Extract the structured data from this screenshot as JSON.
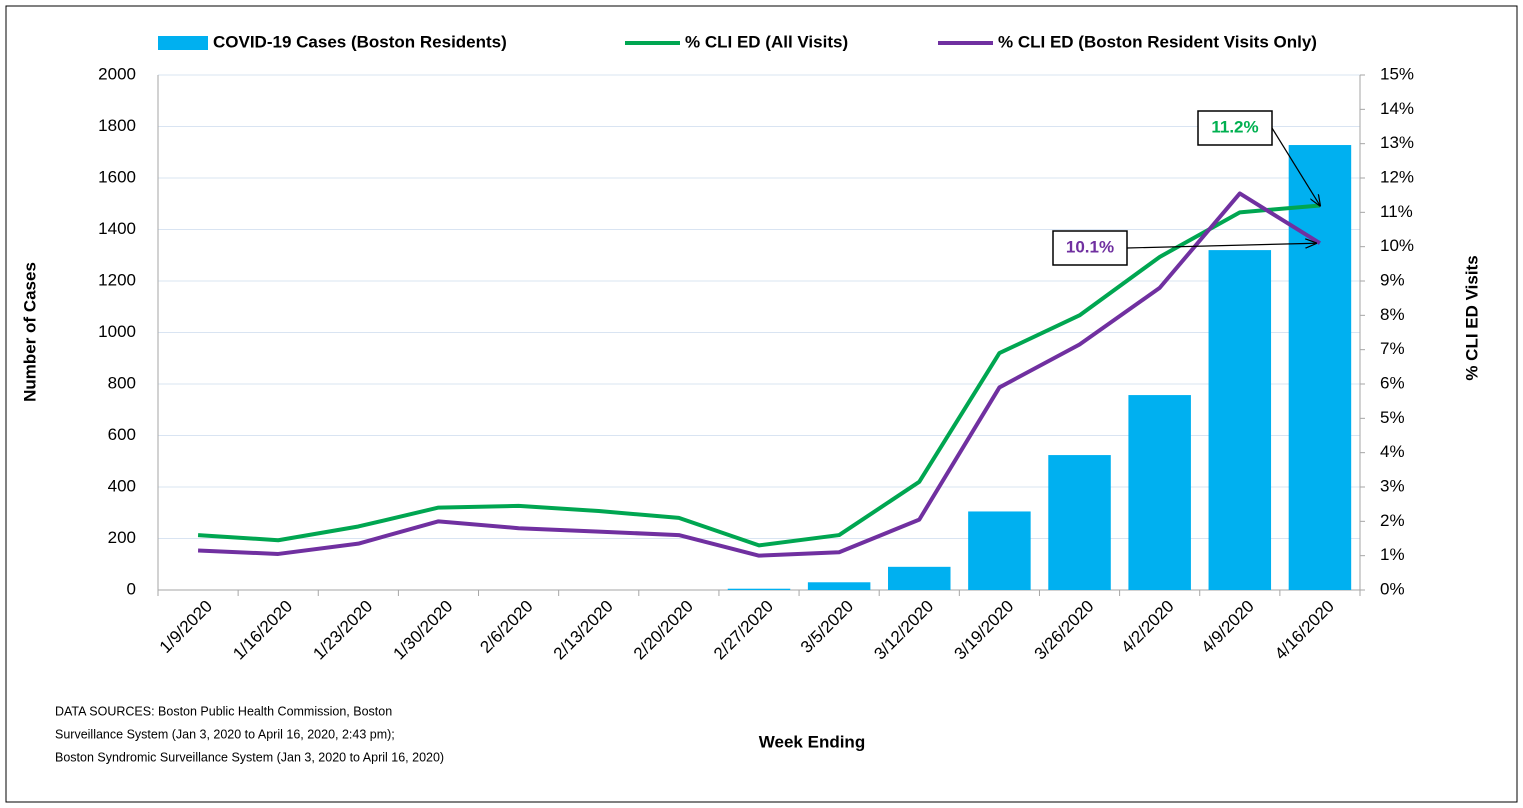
{
  "chart_data": {
    "type": "bar-line",
    "xlabel": "Week Ending",
    "ylabel": "Number of Cases",
    "y2label": "% CLI ED Visits",
    "categories": [
      "1/9/2020",
      "1/16/2020",
      "1/23/2020",
      "1/30/2020",
      "2/6/2020",
      "2/13/2020",
      "2/20/2020",
      "2/27/2020",
      "3/5/2020",
      "3/12/2020",
      "3/19/2020",
      "3/26/2020",
      "4/2/2020",
      "4/9/2020",
      "4/16/2020"
    ],
    "series": [
      {
        "name": "COVID-19 Cases (Boston Residents)",
        "type": "bar",
        "color": "#00b0f0",
        "values": [
          0,
          0,
          0,
          0,
          0,
          0,
          0,
          5,
          30,
          90,
          305,
          524,
          757,
          1320,
          1728
        ]
      },
      {
        "name": "% CLI ED (All Visits)",
        "type": "line",
        "axis": "y2",
        "color": "#00a651",
        "values": [
          1.6,
          1.45,
          1.85,
          2.4,
          2.45,
          2.3,
          2.1,
          1.3,
          1.6,
          3.15,
          6.9,
          8.0,
          9.7,
          11.0,
          11.2
        ]
      },
      {
        "name": "% CLI ED (Boston Resident Visits Only)",
        "type": "line",
        "axis": "y2",
        "color": "#7030a0",
        "values": [
          1.15,
          1.05,
          1.35,
          2.0,
          1.8,
          1.7,
          1.6,
          1.0,
          1.1,
          2.05,
          5.9,
          7.15,
          8.8,
          11.55,
          10.1
        ]
      }
    ],
    "annotations": [
      {
        "text": "11.2%",
        "series": 1,
        "color": "#00b050"
      },
      {
        "text": "10.1%",
        "series": 2,
        "color": "#7030a0"
      }
    ],
    "ylim": [
      0,
      2000
    ],
    "yticks": [
      0,
      200,
      400,
      600,
      800,
      1000,
      1200,
      1400,
      1600,
      1800,
      2000
    ],
    "y2lim": [
      0,
      15
    ],
    "y2ticks": [
      {
        "value": 0,
        "label": "0%"
      },
      {
        "value": 1,
        "label": "1%"
      },
      {
        "value": 2,
        "label": "2%"
      },
      {
        "value": 3,
        "label": "3%"
      },
      {
        "value": 4,
        "label": "4%"
      },
      {
        "value": 5,
        "label": "5%"
      },
      {
        "value": 6,
        "label": "6%"
      },
      {
        "value": 7,
        "label": "7%"
      },
      {
        "value": 8,
        "label": "8%"
      },
      {
        "value": 9,
        "label": "9%"
      },
      {
        "value": 10,
        "label": "10%"
      },
      {
        "value": 11,
        "label": "11%"
      },
      {
        "value": 12,
        "label": "12%"
      },
      {
        "value": 13,
        "label": "13%"
      },
      {
        "value": 14,
        "label": "14%"
      },
      {
        "value": 15,
        "label": "15%"
      }
    ],
    "grid": true,
    "legend": "top",
    "notes": [
      "DATA SOURCES: Boston Public Health Commission, Boston",
      "Surveillance System (Jan 3, 2020 to April 16, 2020, 2:43 pm);",
      "Boston Syndromic Surveillance System (Jan 3, 2020 to April 16, 2020)"
    ]
  }
}
